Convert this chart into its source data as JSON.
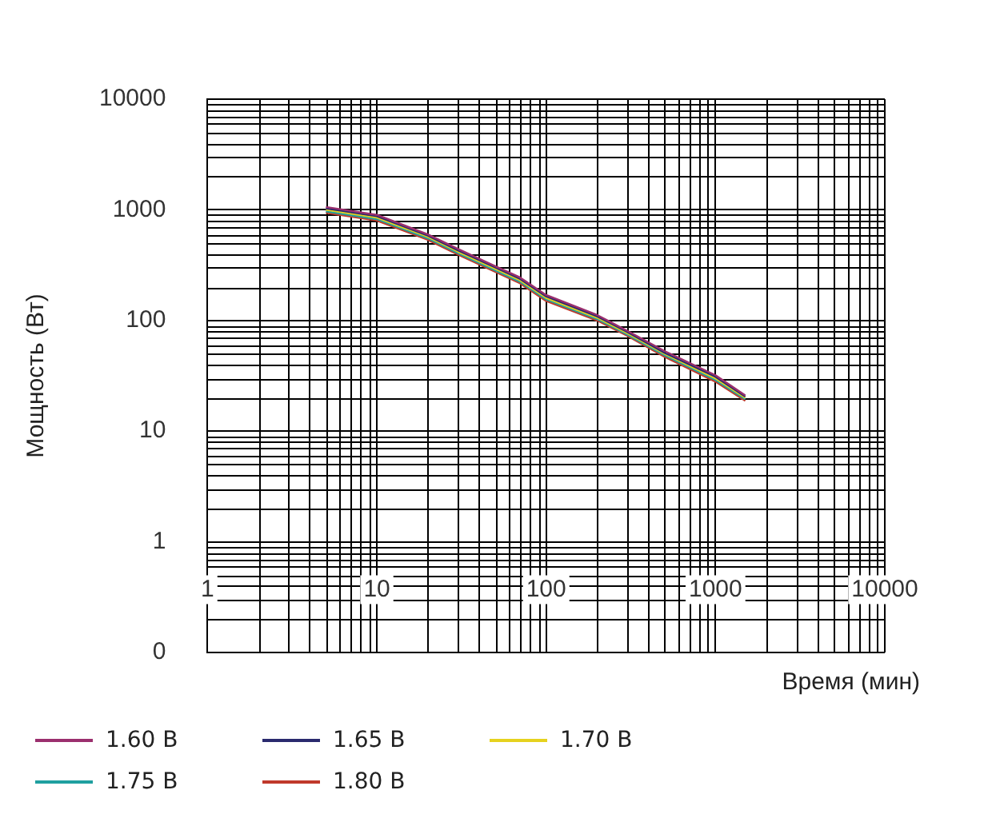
{
  "chart_data": {
    "type": "line",
    "xlabel": "Время (мин)",
    "ylabel": "Мощность (Вт)",
    "x": [
      5,
      10,
      20,
      30,
      50,
      70,
      100,
      200,
      300,
      500,
      1000,
      1500
    ],
    "series": [
      {
        "name": "1.60 В",
        "color": "#9b2f6e",
        "values": [
          1060,
          900,
          600,
          445,
          310,
          245,
          170,
          112,
          81,
          53,
          32,
          21
        ]
      },
      {
        "name": "1.65 В",
        "color": "#2a2a6e",
        "values": [
          1030,
          875,
          585,
          432,
          302,
          238,
          165,
          109,
          79,
          51,
          31,
          20.5
        ]
      },
      {
        "name": "1.70 В",
        "color": "#e6d21e",
        "values": [
          1000,
          850,
          570,
          420,
          293,
          231,
          160,
          106,
          77,
          50,
          30,
          20
        ]
      },
      {
        "name": "1.75 В",
        "color": "#20a0a0",
        "values": [
          970,
          825,
          553,
          407,
          284,
          224,
          155,
          103,
          75,
          48.5,
          29,
          19.4
        ]
      },
      {
        "name": "1.80 В",
        "color": "#c0392b",
        "values": [
          940,
          800,
          536,
          395,
          275,
          217,
          150,
          100,
          73,
          47,
          28,
          18.8
        ]
      }
    ],
    "log": "xy",
    "xlim": [
      1,
      10000
    ],
    "ylim": [
      0.1,
      10000
    ],
    "xticks": [
      1,
      10,
      100,
      1000,
      10000
    ],
    "yticks": [
      {
        "value": 0.1,
        "label": "0"
      },
      1,
      10,
      100,
      1000,
      10000
    ],
    "grid": true,
    "legend": "bottom left",
    "marker": "none",
    "line_style": "solid"
  }
}
